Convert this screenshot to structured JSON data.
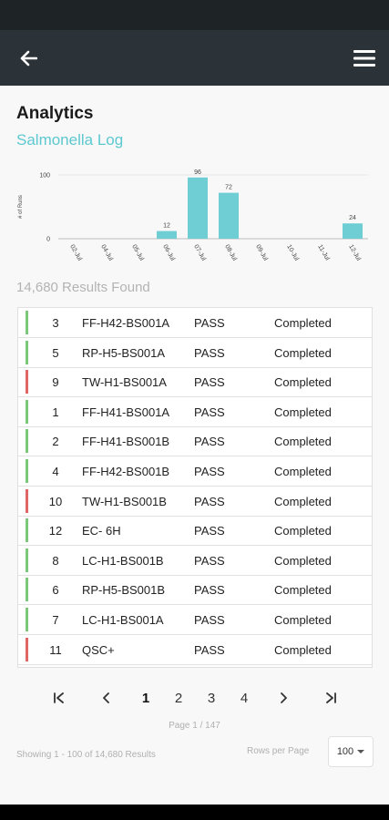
{
  "header": {
    "back_icon": "arrow-left-icon",
    "menu_icon": "hamburger-menu-icon"
  },
  "page": {
    "title": "Analytics",
    "subtitle": "Salmonella Log"
  },
  "chart_data": {
    "type": "bar",
    "title": "",
    "xlabel": "",
    "ylabel": "# of Runs",
    "ylim": [
      0,
      100
    ],
    "yticks": [
      "0",
      "100"
    ],
    "categories": [
      "02-Jul",
      "04-Jul",
      "05-Jul",
      "06-Jul",
      "07-Jul",
      "08-Jul",
      "09-Jul",
      "10-Jul",
      "11-Jul",
      "12-Jul"
    ],
    "values": [
      0,
      0,
      0,
      12,
      96,
      72,
      0,
      0,
      0,
      24
    ],
    "bar_color": "#6fcdd4",
    "grid": false
  },
  "results": {
    "count_text": "14,680 Results Found"
  },
  "table": {
    "rows": [
      {
        "number": "3",
        "id": "FF-H42-BS001A",
        "result": "PASS",
        "status": "Completed",
        "indicator": "pass"
      },
      {
        "number": "5",
        "id": "RP-H5-BS001A",
        "result": "PASS",
        "status": "Completed",
        "indicator": "pass"
      },
      {
        "number": "9",
        "id": "TW-H1-BS001A",
        "result": "PASS",
        "status": "Completed",
        "indicator": "fail"
      },
      {
        "number": "1",
        "id": "FF-H41-BS001A",
        "result": "PASS",
        "status": "Completed",
        "indicator": "pass"
      },
      {
        "number": "2",
        "id": "FF-H41-BS001B",
        "result": "PASS",
        "status": "Completed",
        "indicator": "pass"
      },
      {
        "number": "4",
        "id": "FF-H42-BS001B",
        "result": "PASS",
        "status": "Completed",
        "indicator": "pass"
      },
      {
        "number": "10",
        "id": "TW-H1-BS001B",
        "result": "PASS",
        "status": "Completed",
        "indicator": "fail"
      },
      {
        "number": "12",
        "id": "EC- 6H",
        "result": "PASS",
        "status": "Completed",
        "indicator": "pass"
      },
      {
        "number": "8",
        "id": "LC-H1-BS001B",
        "result": "PASS",
        "status": "Completed",
        "indicator": "pass"
      },
      {
        "number": "6",
        "id": "RP-H5-BS001B",
        "result": "PASS",
        "status": "Completed",
        "indicator": "pass"
      },
      {
        "number": "7",
        "id": "LC-H1-BS001A",
        "result": "PASS",
        "status": "Completed",
        "indicator": "pass"
      },
      {
        "number": "11",
        "id": "QSC+",
        "result": "PASS",
        "status": "Completed",
        "indicator": "fail"
      }
    ],
    "colors": {
      "pass": "#7cc87a",
      "fail": "#e06666"
    }
  },
  "pagination": {
    "first_icon": "first-page-icon",
    "prev_icon": "chevron-left-icon",
    "next_icon": "chevron-right-icon",
    "last_icon": "last-page-icon",
    "pages": [
      "1",
      "2",
      "3",
      "4"
    ],
    "current": "1",
    "page_indicator": "Page 1 / 147",
    "showing": "Showing 1 - 100 of 14,680 Results",
    "rows_per_page_label": "Rows per Page",
    "rows_per_page_value": "100"
  }
}
